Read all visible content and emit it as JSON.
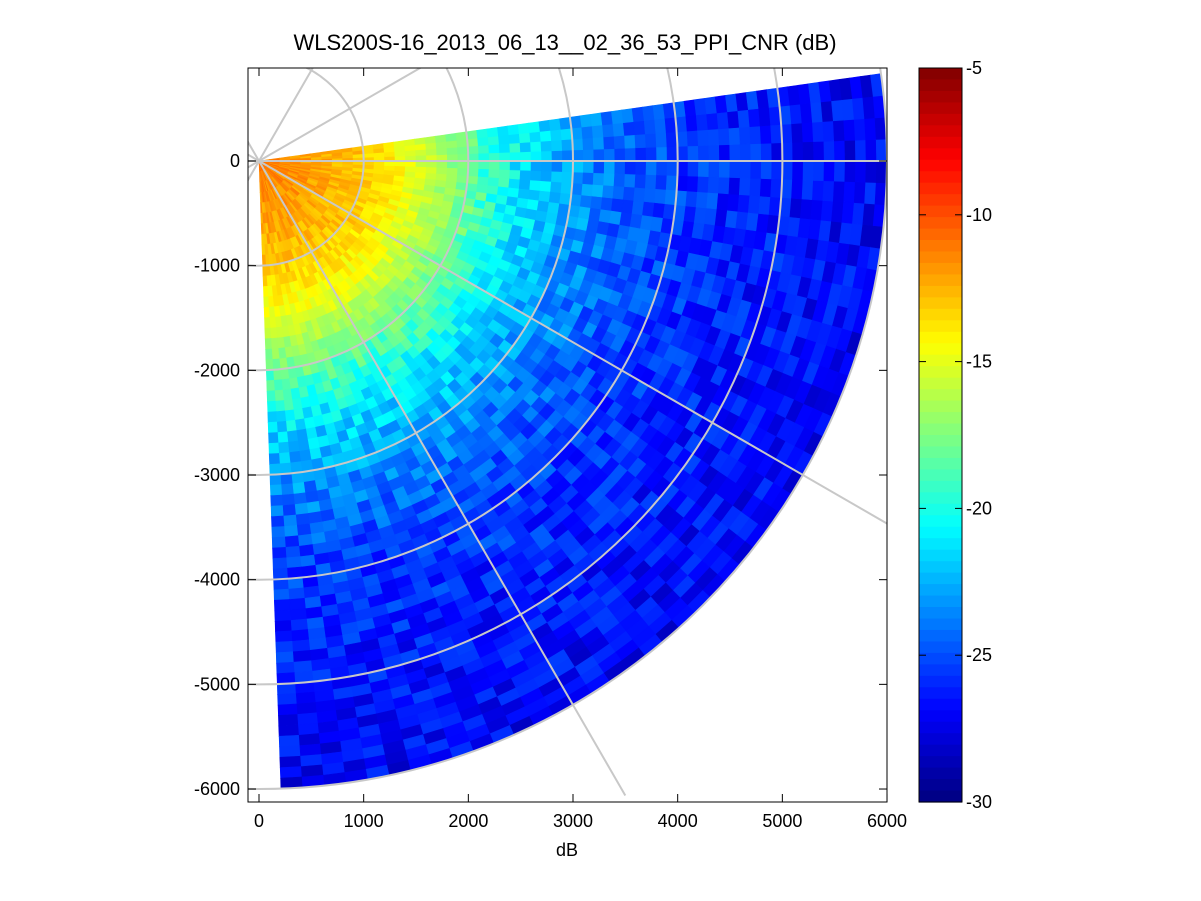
{
  "chart_data": {
    "type": "heatmap",
    "subtype": "polar-ppi-sector",
    "title": "WLS200S-16_2013_06_13__02_36_53_PPI_CNR (dB)",
    "xlabel": "dB",
    "ylabel": "",
    "xlim": [
      -100,
      6000
    ],
    "ylim": [
      -6100,
      900
    ],
    "x_ticks": [
      0,
      1000,
      2000,
      3000,
      4000,
      5000,
      6000
    ],
    "y_ticks": [
      0,
      -1000,
      -2000,
      -3000,
      -4000,
      -5000,
      -6000
    ],
    "x_tick_labels": [
      "0",
      "1000",
      "2000",
      "3000",
      "4000",
      "5000",
      "6000"
    ],
    "y_tick_labels": [
      "0",
      "-1000",
      "-2000",
      "-3000",
      "-4000",
      "-5000",
      "-6000"
    ],
    "sector": {
      "azimuth_from_deg": -88,
      "azimuth_to_deg": 8,
      "max_range": 6000,
      "range_gates": 60,
      "azimuth_bins": 48
    },
    "radial_cnr_profile": {
      "range": [
        0,
        500,
        1000,
        1500,
        2000,
        2500,
        3000,
        3500,
        4000,
        5000,
        6000
      ],
      "cnr_db": [
        -11,
        -12,
        -13,
        -15,
        -18,
        -21,
        -23,
        -24.5,
        -25.5,
        -26.5,
        -27
      ]
    },
    "polar_grid": {
      "rings": [
        1000,
        2000,
        3000,
        4000,
        5000,
        6000
      ],
      "spokes_deg": [
        -60,
        -30,
        0,
        30,
        60
      ],
      "grid": true
    },
    "colorbar": {
      "colormap": "jet",
      "range": [
        -30,
        -5
      ],
      "ticks": [
        -5,
        -10,
        -15,
        -20,
        -25,
        -30
      ],
      "tick_labels": [
        "-5",
        "-10",
        "-15",
        "-20",
        "-25",
        "-30"
      ]
    },
    "colors": {
      "grid": "#c8c8c8",
      "background": "#ffffff",
      "axes": "#000000"
    }
  }
}
